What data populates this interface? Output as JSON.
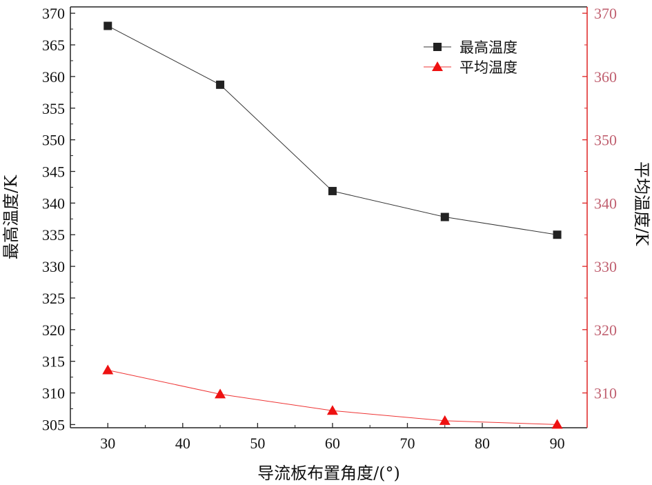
{
  "chart_data": {
    "type": "line",
    "x": [
      30,
      45,
      60,
      75,
      90
    ],
    "xticks": [
      30,
      40,
      50,
      60,
      70,
      80,
      90
    ],
    "xlim": [
      25,
      94
    ],
    "xlabel": "导流板布置角度/(°)",
    "y_left": {
      "label": "最高温度/K",
      "lim": [
        304.5,
        371
      ],
      "ticks": [
        305,
        310,
        315,
        320,
        325,
        330,
        335,
        340,
        345,
        350,
        355,
        360,
        365,
        370
      ]
    },
    "y_right": {
      "label": "平均温度/K",
      "lim": [
        304.5,
        371
      ],
      "ticks": [
        310,
        320,
        330,
        340,
        350,
        360,
        370
      ]
    },
    "series": [
      {
        "name": "最高温度",
        "axis": "left",
        "marker": "square",
        "color": "#222222",
        "line_color": "#333333",
        "values": [
          368.0,
          358.7,
          341.9,
          337.8,
          335.0
        ]
      },
      {
        "name": "平均温度",
        "axis": "right",
        "marker": "triangle",
        "color": "#ee1111",
        "line_color": "#ee3333",
        "values": [
          313.6,
          309.8,
          307.2,
          305.6,
          305.0
        ]
      }
    ],
    "right_axis_color": "#dd2222",
    "right_tick_color": "#c06070",
    "legend_position": "top-right",
    "grid": false
  }
}
